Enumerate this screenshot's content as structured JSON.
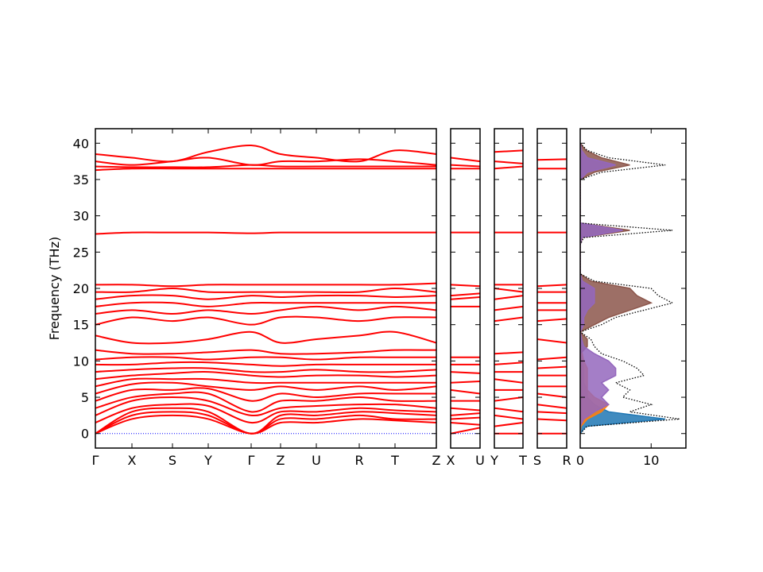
{
  "chart_data": [
    {
      "type": "line",
      "ylabel": "Frequency (THz)",
      "color": "#ff0000",
      "show_ytick_labels": true,
      "x": [
        0,
        0.46,
        0.97,
        1.42,
        1.96,
        2.33,
        2.78,
        3.32,
        3.77,
        4.29
      ],
      "xlim": [
        0,
        4.29
      ],
      "xticks": [
        {
          "value": 0,
          "label": "Γ"
        },
        {
          "value": 0.46,
          "label": "X"
        },
        {
          "value": 0.97,
          "label": "S"
        },
        {
          "value": 1.42,
          "label": "Y"
        },
        {
          "value": 1.96,
          "label": "Γ"
        },
        {
          "value": 2.33,
          "label": "Z"
        },
        {
          "value": 2.78,
          "label": "U"
        },
        {
          "value": 3.32,
          "label": "R"
        },
        {
          "value": 3.77,
          "label": "T"
        },
        {
          "value": 4.29,
          "label": "Z"
        }
      ],
      "ylim": [
        -2,
        42
      ],
      "yticks": [
        0,
        5,
        10,
        15,
        20,
        25,
        30,
        35,
        40
      ],
      "hline": {
        "value": 0,
        "color": "#0000ff"
      },
      "series": [
        {
          "values": [
            0,
            2,
            2.5,
            2,
            0,
            1.5,
            1.5,
            2,
            1.8,
            1.5
          ]
        },
        {
          "values": [
            0,
            2.5,
            3,
            2.5,
            0,
            2,
            2,
            2.5,
            2,
            2
          ]
        },
        {
          "values": [
            0,
            3,
            3.5,
            3,
            0,
            2.5,
            2.5,
            3,
            2.8,
            2.5
          ]
        },
        {
          "values": [
            1.5,
            3.5,
            4,
            3.8,
            1.5,
            3,
            3,
            3.5,
            3.2,
            3
          ]
        },
        {
          "values": [
            2.5,
            4.5,
            5,
            4.5,
            2.5,
            3.5,
            3.8,
            4,
            4,
            3.5
          ]
        },
        {
          "values": [
            3.5,
            5,
            5.5,
            5.5,
            3,
            4.5,
            4.5,
            5,
            4.5,
            4.5
          ]
        },
        {
          "values": [
            4.5,
            6,
            6,
            6.2,
            4.5,
            5.5,
            5,
            5.5,
            5.5,
            5.5
          ]
        },
        {
          "values": [
            5.5,
            6.8,
            7,
            6.5,
            6,
            6.5,
            6,
            6.5,
            6,
            6.5
          ]
        },
        {
          "values": [
            6.5,
            7.5,
            7.5,
            7.5,
            7,
            7,
            7,
            7,
            7,
            7
          ]
        },
        {
          "values": [
            7.5,
            8,
            8.3,
            8.5,
            8,
            7.8,
            8,
            8,
            7.8,
            8
          ]
        },
        {
          "values": [
            8.5,
            8.8,
            9,
            9,
            8.5,
            8.5,
            8.8,
            8.5,
            8.5,
            8.8
          ]
        },
        {
          "values": [
            9.5,
            9.5,
            9.8,
            9.8,
            9.5,
            9.3,
            9.5,
            9.5,
            9.5,
            9.5
          ]
        },
        {
          "values": [
            10.2,
            10.5,
            10.5,
            10.2,
            10.5,
            10.5,
            10.2,
            10.5,
            10.5,
            10.5
          ]
        },
        {
          "values": [
            11.5,
            11,
            11,
            11.2,
            11.5,
            11,
            11,
            11.2,
            11.5,
            11.5
          ]
        },
        {
          "values": [
            13.5,
            12.5,
            12.5,
            13,
            14,
            12.5,
            13,
            13.5,
            14,
            12.5
          ]
        },
        {
          "values": [
            15,
            16,
            15.5,
            16,
            15,
            16,
            16,
            15.5,
            16,
            16
          ]
        },
        {
          "values": [
            16.5,
            17,
            16.5,
            17,
            16.5,
            17,
            17.5,
            17,
            17.5,
            17
          ]
        },
        {
          "values": [
            17.5,
            18,
            18,
            17.5,
            18,
            18,
            18,
            18,
            18,
            18
          ]
        },
        {
          "values": [
            18.5,
            19,
            19,
            18.5,
            19,
            18.8,
            19,
            19,
            18.8,
            19
          ]
        },
        {
          "values": [
            19.5,
            19.5,
            20,
            19.5,
            19.5,
            19.5,
            19.5,
            19.5,
            20,
            19.5
          ]
        },
        {
          "values": [
            20.5,
            20.5,
            20.3,
            20.5,
            20.5,
            20.5,
            20.5,
            20.5,
            20.5,
            20.7
          ]
        },
        {
          "values": [
            27.5,
            27.7,
            27.7,
            27.7,
            27.6,
            27.7,
            27.7,
            27.7,
            27.7,
            27.7
          ]
        },
        {
          "values": [
            36.3,
            36.5,
            36.5,
            36.5,
            36.5,
            36.5,
            36.5,
            36.5,
            36.5,
            36.5
          ]
        },
        {
          "values": [
            36.8,
            36.7,
            36.7,
            36.7,
            37,
            36.8,
            36.8,
            36.8,
            36.8,
            36.8
          ]
        },
        {
          "values": [
            37.5,
            37,
            37.5,
            38,
            37,
            37.5,
            37.5,
            37.8,
            37.5,
            37
          ]
        },
        {
          "values": [
            38.5,
            38,
            37.5,
            38.8,
            39.7,
            38.5,
            38,
            37.5,
            39,
            38.5
          ]
        }
      ]
    },
    {
      "type": "line",
      "color": "#ff0000",
      "show_ytick_labels": false,
      "x": [
        0,
        0.37
      ],
      "xlim": [
        0,
        0.37
      ],
      "xticks": [
        {
          "value": 0,
          "label": "X"
        },
        {
          "value": 0.37,
          "label": "U"
        }
      ],
      "ylim": [
        -2,
        42
      ],
      "yticks": [
        0,
        5,
        10,
        15,
        20,
        25,
        30,
        35,
        40
      ],
      "hline": {
        "value": 0,
        "color": "#0000ff"
      },
      "series": [
        {
          "values": [
            0,
            0.8
          ]
        },
        {
          "values": [
            1.5,
            1.2
          ]
        },
        {
          "values": [
            2,
            2.2
          ]
        },
        {
          "values": [
            2.5,
            2.8
          ]
        },
        {
          "values": [
            3.5,
            3.2
          ]
        },
        {
          "values": [
            4.5,
            4.5
          ]
        },
        {
          "values": [
            6,
            5.5
          ]
        },
        {
          "values": [
            7,
            7.2
          ]
        },
        {
          "values": [
            8.5,
            8.3
          ]
        },
        {
          "values": [
            9.5,
            9.5
          ]
        },
        {
          "values": [
            10.5,
            10.5
          ]
        },
        {
          "values": [
            17.5,
            17.5
          ]
        },
        {
          "values": [
            18.5,
            18.8
          ]
        },
        {
          "values": [
            19,
            19.3
          ]
        },
        {
          "values": [
            20.5,
            20.3
          ]
        },
        {
          "values": [
            27.7,
            27.7
          ]
        },
        {
          "values": [
            36.5,
            36.5
          ]
        },
        {
          "values": [
            37,
            36.8
          ]
        },
        {
          "values": [
            38,
            37.5
          ]
        }
      ]
    },
    {
      "type": "line",
      "color": "#ff0000",
      "show_ytick_labels": false,
      "x": [
        0,
        0.36
      ],
      "xlim": [
        0,
        0.36
      ],
      "xticks": [
        {
          "value": 0,
          "label": "Y"
        },
        {
          "value": 0.36,
          "label": "T"
        }
      ],
      "ylim": [
        -2,
        42
      ],
      "yticks": [
        0,
        5,
        10,
        15,
        20,
        25,
        30,
        35,
        40
      ],
      "hline": {
        "value": 0,
        "color": "#0000ff"
      },
      "series": [
        {
          "values": [
            0,
            0
          ]
        },
        {
          "values": [
            1,
            1.5
          ]
        },
        {
          "values": [
            2.5,
            2
          ]
        },
        {
          "values": [
            3.5,
            3
          ]
        },
        {
          "values": [
            4.5,
            5
          ]
        },
        {
          "values": [
            6,
            6
          ]
        },
        {
          "values": [
            7.5,
            7
          ]
        },
        {
          "values": [
            8.5,
            8.5
          ]
        },
        {
          "values": [
            9.5,
            9.8
          ]
        },
        {
          "values": [
            11,
            11.2
          ]
        },
        {
          "values": [
            15.5,
            16
          ]
        },
        {
          "values": [
            17,
            17.5
          ]
        },
        {
          "values": [
            18.5,
            19
          ]
        },
        {
          "values": [
            20,
            19.5
          ]
        },
        {
          "values": [
            20.5,
            20.5
          ]
        },
        {
          "values": [
            27.7,
            27.7
          ]
        },
        {
          "values": [
            36.5,
            36.8
          ]
        },
        {
          "values": [
            37.5,
            37.2
          ]
        },
        {
          "values": [
            38.8,
            39
          ]
        }
      ]
    },
    {
      "type": "line",
      "color": "#ff0000",
      "show_ytick_labels": false,
      "x": [
        0,
        0.37
      ],
      "xlim": [
        0,
        0.37
      ],
      "xticks": [
        {
          "value": 0,
          "label": "S"
        },
        {
          "value": 0.37,
          "label": "R"
        }
      ],
      "ylim": [
        -2,
        42
      ],
      "yticks": [
        0,
        5,
        10,
        15,
        20,
        25,
        30,
        35,
        40
      ],
      "hline": {
        "value": 0,
        "color": "#0000ff"
      },
      "series": [
        {
          "values": [
            0,
            0
          ]
        },
        {
          "values": [
            2,
            1.8
          ]
        },
        {
          "values": [
            3,
            2.8
          ]
        },
        {
          "values": [
            4,
            3.5
          ]
        },
        {
          "values": [
            5.5,
            5
          ]
        },
        {
          "values": [
            6.5,
            6.5
          ]
        },
        {
          "values": [
            8,
            8
          ]
        },
        {
          "values": [
            9,
            9.2
          ]
        },
        {
          "values": [
            10.2,
            10.5
          ]
        },
        {
          "values": [
            13,
            12.5
          ]
        },
        {
          "values": [
            15.5,
            15.8
          ]
        },
        {
          "values": [
            17,
            17
          ]
        },
        {
          "values": [
            18,
            18
          ]
        },
        {
          "values": [
            19.5,
            19.5
          ]
        },
        {
          "values": [
            20.3,
            20.5
          ]
        },
        {
          "values": [
            27.7,
            27.7
          ]
        },
        {
          "values": [
            36.5,
            36.5
          ]
        },
        {
          "values": [
            37.7,
            37.8
          ]
        }
      ]
    },
    {
      "type": "line",
      "orientation": "horizontal",
      "show_ytick_labels": false,
      "y": [
        0,
        1,
        2,
        3,
        4,
        5,
        6,
        7,
        8,
        9,
        10,
        11,
        12,
        13,
        14,
        15,
        16,
        17,
        18,
        19,
        20,
        21,
        22,
        23,
        24,
        25,
        26,
        27,
        28,
        29,
        30,
        31,
        32,
        33,
        34,
        35,
        36,
        37,
        38,
        39,
        40
      ],
      "xlim": [
        0,
        14.9
      ],
      "xticks": [
        0,
        10
      ],
      "ylim": [
        -2,
        42
      ],
      "yticks": [
        0,
        5,
        10,
        15,
        20,
        25,
        30,
        35,
        40
      ],
      "series": [
        {
          "color": "#1f77b4",
          "fill": true,
          "values": [
            0,
            0.8,
            12,
            4,
            2,
            1,
            1,
            0.5,
            0.5,
            0.5,
            0.3,
            0.2,
            0,
            0,
            0,
            0,
            0,
            0,
            0,
            0,
            0,
            0,
            0,
            0,
            0,
            0,
            0,
            0,
            0,
            0,
            0,
            0,
            0,
            0,
            0,
            0,
            0,
            0,
            0,
            0,
            0
          ]
        },
        {
          "color": "#ff7f0e",
          "fill": true,
          "values": [
            0,
            0.1,
            1,
            3,
            4,
            2,
            1,
            1,
            1,
            1,
            0.5,
            0.3,
            0,
            0,
            0,
            0,
            0,
            0,
            0,
            0,
            0,
            0,
            0,
            0,
            0,
            0,
            0,
            0,
            0,
            0,
            0,
            0,
            0,
            0,
            0,
            0,
            0,
            0,
            0,
            0,
            0
          ]
        },
        {
          "color": "#8c564b",
          "fill": true,
          "values": [
            0,
            0,
            0,
            0,
            0,
            0,
            0,
            0,
            0,
            0,
            0,
            0,
            1,
            1,
            0,
            2,
            4,
            7,
            10,
            8,
            7,
            1.5,
            0,
            0,
            0,
            0,
            0,
            0.3,
            7,
            0,
            0,
            0,
            0,
            0,
            0,
            0,
            2,
            7,
            3,
            0.8,
            0
          ]
        },
        {
          "color": "#9467bd",
          "fill": true,
          "values": [
            0,
            0,
            0.5,
            2,
            4,
            3,
            4,
            3,
            5,
            5,
            4,
            2,
            0.5,
            0.2,
            0,
            0.5,
            0.5,
            1,
            2,
            2,
            2,
            0.3,
            0,
            0,
            0,
            0,
            0,
            0.2,
            6,
            0,
            0,
            0,
            0,
            0,
            0,
            0,
            1,
            5,
            1,
            0.2,
            0
          ]
        },
        {
          "color": "#000000",
          "fill": false,
          "dotted": true,
          "values": [
            0,
            1,
            14,
            7,
            10,
            6,
            7,
            5,
            9,
            8,
            6,
            3,
            2,
            1.5,
            0,
            3,
            5,
            9,
            13,
            11,
            10,
            2,
            0,
            0,
            0,
            0,
            0,
            0.5,
            13,
            0,
            0,
            0,
            0,
            0,
            0,
            0,
            3,
            12,
            4,
            1,
            0
          ]
        }
      ]
    }
  ]
}
